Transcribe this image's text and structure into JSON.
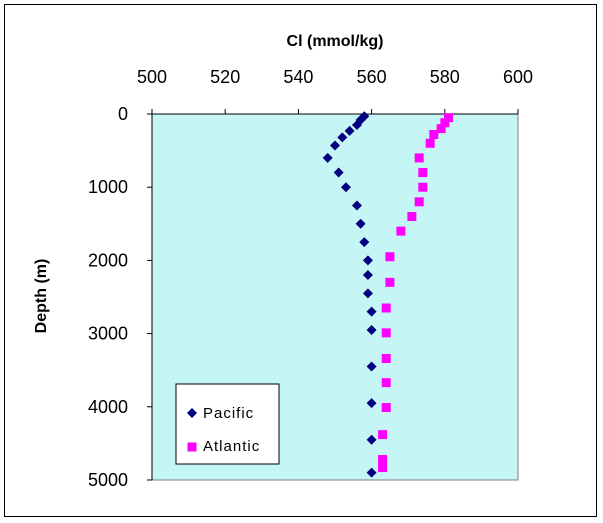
{
  "chart_data": {
    "type": "scatter",
    "title": "",
    "xlabel": "Cl (mmol/kg)",
    "ylabel": "Depth (m)",
    "xlim": [
      500,
      600
    ],
    "ylim": [
      0,
      5000
    ],
    "x_ticks": [
      500,
      520,
      540,
      560,
      580,
      600
    ],
    "y_ticks": [
      0,
      1000,
      2000,
      3000,
      4000,
      5000
    ],
    "x_axis_position": "top",
    "y_axis_inverted": true,
    "grid": false,
    "plot_background": "#c6f5f5",
    "legend_position": "bottom-left",
    "series": [
      {
        "name": "Pacific",
        "marker": "diamond",
        "color": "#000080",
        "points": [
          {
            "x": 558,
            "y": 30
          },
          {
            "x": 557,
            "y": 80
          },
          {
            "x": 556,
            "y": 150
          },
          {
            "x": 554,
            "y": 230
          },
          {
            "x": 552,
            "y": 320
          },
          {
            "x": 550,
            "y": 430
          },
          {
            "x": 548,
            "y": 600
          },
          {
            "x": 551,
            "y": 800
          },
          {
            "x": 553,
            "y": 1000
          },
          {
            "x": 556,
            "y": 1250
          },
          {
            "x": 557,
            "y": 1500
          },
          {
            "x": 558,
            "y": 1750
          },
          {
            "x": 559,
            "y": 2000
          },
          {
            "x": 559,
            "y": 2200
          },
          {
            "x": 559,
            "y": 2450
          },
          {
            "x": 560,
            "y": 2700
          },
          {
            "x": 560,
            "y": 2950
          },
          {
            "x": 560,
            "y": 3450
          },
          {
            "x": 560,
            "y": 3950
          },
          {
            "x": 560,
            "y": 4450
          },
          {
            "x": 560,
            "y": 4900
          }
        ]
      },
      {
        "name": "Atlantic",
        "marker": "square",
        "color": "#ff00ff",
        "points": [
          {
            "x": 581,
            "y": 50
          },
          {
            "x": 580,
            "y": 120
          },
          {
            "x": 579,
            "y": 200
          },
          {
            "x": 577,
            "y": 280
          },
          {
            "x": 576,
            "y": 400
          },
          {
            "x": 573,
            "y": 600
          },
          {
            "x": 574,
            "y": 800
          },
          {
            "x": 574,
            "y": 1000
          },
          {
            "x": 573,
            "y": 1200
          },
          {
            "x": 571,
            "y": 1400
          },
          {
            "x": 568,
            "y": 1600
          },
          {
            "x": 565,
            "y": 1950
          },
          {
            "x": 565,
            "y": 2300
          },
          {
            "x": 564,
            "y": 2650
          },
          {
            "x": 564,
            "y": 2990
          },
          {
            "x": 564,
            "y": 3340
          },
          {
            "x": 564,
            "y": 3670
          },
          {
            "x": 564,
            "y": 4010
          },
          {
            "x": 563,
            "y": 4380
          },
          {
            "x": 563,
            "y": 4720
          },
          {
            "x": 563,
            "y": 4830
          }
        ]
      }
    ]
  }
}
